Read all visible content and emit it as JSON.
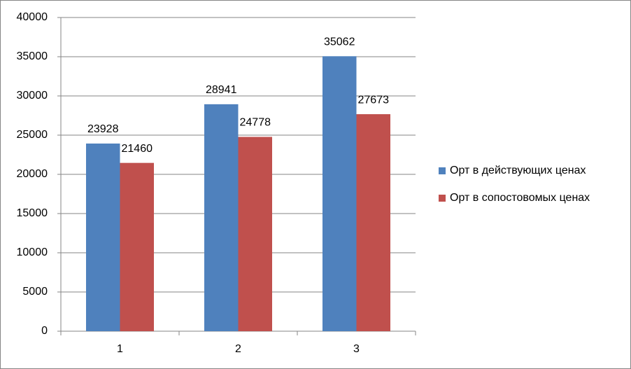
{
  "chart_data": {
    "type": "bar",
    "categories": [
      "1",
      "2",
      "3"
    ],
    "series": [
      {
        "name": "Орт в действующих ценах",
        "color": "#4f81bd",
        "values": [
          23928,
          28941,
          35062
        ]
      },
      {
        "name": "Орт в сопостовомых ценах",
        "color": "#c0504d",
        "values": [
          21460,
          24778,
          27673
        ]
      }
    ],
    "ylim": [
      0,
      40000
    ],
    "yticks": [
      0,
      5000,
      10000,
      15000,
      20000,
      25000,
      30000,
      35000,
      40000
    ],
    "grid": true,
    "legend": "right"
  }
}
